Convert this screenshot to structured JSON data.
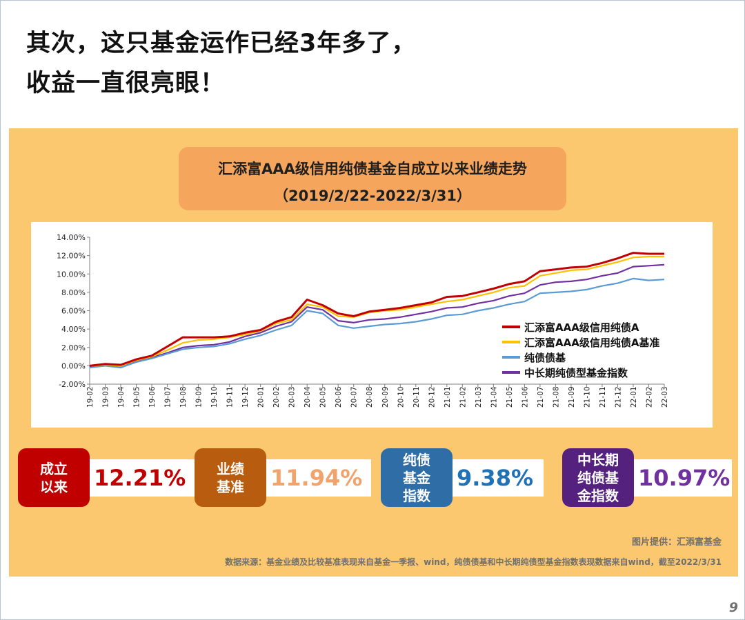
{
  "headline": {
    "line1": "其次，这只基金运作已经3年多了，",
    "line2": "收益一直很亮眼！"
  },
  "chart_title": {
    "line1": "汇添富AAA级信用纯债基金自成立以来业绩走势",
    "line2": "（2019/2/22-2022/3/31）"
  },
  "chart_data": {
    "type": "line",
    "x": [
      "19-02",
      "19-03",
      "19-04",
      "19-05",
      "19-06",
      "19-07",
      "19-08",
      "19-09",
      "19-10",
      "19-11",
      "19-12",
      "20-01",
      "20-02",
      "20-03",
      "20-04",
      "20-05",
      "20-06",
      "20-07",
      "20-08",
      "20-09",
      "20-10",
      "20-11",
      "20-12",
      "21-01",
      "21-02",
      "21-03",
      "21-04",
      "21-05",
      "21-06",
      "21-07",
      "21-08",
      "21-09",
      "21-10",
      "21-11",
      "21-12",
      "22-01",
      "22-02",
      "22-03"
    ],
    "series": [
      {
        "name": "汇添富AAA级信用纯债A",
        "color": "#c00000",
        "values": [
          0.0,
          0.2,
          0.1,
          0.7,
          1.1,
          2.1,
          3.1,
          3.1,
          3.1,
          3.2,
          3.6,
          3.9,
          4.8,
          5.3,
          7.2,
          6.6,
          5.7,
          5.4,
          5.9,
          6.1,
          6.3,
          6.6,
          6.9,
          7.5,
          7.6,
          8.0,
          8.4,
          8.9,
          9.2,
          10.3,
          10.5,
          10.7,
          10.8,
          11.2,
          11.7,
          12.3,
          12.2,
          12.2
        ]
      },
      {
        "name": "汇添富AAA级信用纯债A基准",
        "color": "#ffc000",
        "values": [
          0.0,
          0.1,
          0.0,
          0.6,
          1.0,
          1.7,
          2.5,
          2.8,
          2.9,
          3.1,
          3.4,
          3.8,
          4.6,
          5.0,
          6.7,
          6.4,
          5.4,
          5.3,
          5.8,
          6.0,
          6.1,
          6.4,
          6.7,
          7.0,
          7.2,
          7.6,
          8.0,
          8.5,
          8.7,
          9.8,
          10.1,
          10.4,
          10.5,
          10.9,
          11.3,
          11.8,
          11.9,
          11.9
        ]
      },
      {
        "name": "纯债债基",
        "color": "#5b9bd5",
        "values": [
          -0.2,
          0.0,
          -0.2,
          0.4,
          0.8,
          1.3,
          1.8,
          2.0,
          2.1,
          2.4,
          2.9,
          3.3,
          3.9,
          4.4,
          6.0,
          5.7,
          4.4,
          4.1,
          4.3,
          4.5,
          4.6,
          4.8,
          5.1,
          5.5,
          5.6,
          6.0,
          6.3,
          6.7,
          7.0,
          7.9,
          8.0,
          8.1,
          8.3,
          8.7,
          9.0,
          9.5,
          9.3,
          9.4
        ]
      },
      {
        "name": "中长期纯债型基金指数",
        "color": "#7030a0",
        "values": [
          -0.1,
          0.1,
          -0.2,
          0.5,
          0.9,
          1.4,
          2.0,
          2.2,
          2.3,
          2.6,
          3.2,
          3.6,
          4.3,
          4.8,
          6.4,
          6.1,
          4.9,
          4.7,
          5.0,
          5.1,
          5.3,
          5.6,
          5.9,
          6.3,
          6.4,
          6.8,
          7.1,
          7.6,
          7.9,
          8.8,
          9.1,
          9.2,
          9.4,
          9.8,
          10.1,
          10.8,
          10.9,
          11.0
        ]
      }
    ],
    "ylim": [
      -2,
      14
    ],
    "yticks": [
      "-2.00%",
      "0.00%",
      "2.00%",
      "4.00%",
      "6.00%",
      "8.00%",
      "10.00%",
      "12.00%",
      "14.00%"
    ],
    "grid": false,
    "legend_position": "bottom-right"
  },
  "stats": [
    {
      "label": "成立\n以来",
      "value": "12.21%",
      "badge_color": "#c00000",
      "value_color": "#c00000"
    },
    {
      "label": "业绩\n基准",
      "value": "11.94%",
      "badge_color": "#b85c0f",
      "value_color": "#f2a36b"
    },
    {
      "label": "纯债\n基金\n指数",
      "value": "9.38%",
      "badge_color": "#2e6da6",
      "value_color": "#1f72b8"
    },
    {
      "label": "中长期\n纯债基\n金指数",
      "value": "10.97%",
      "badge_color": "#54217f",
      "value_color": "#7030a0"
    }
  ],
  "credit": "图片提供：汇添富基金",
  "source": "数据来源：基金业绩及比较基准表现来自基金一季报、wind，纯债债基和中长期纯债型基金指数表现数据来自wind，截至2022/3/31",
  "page_number": "9"
}
